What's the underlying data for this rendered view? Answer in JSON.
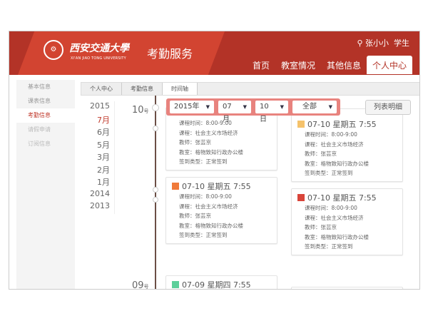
{
  "header": {
    "university_cn": "西安交通大學",
    "university_en": "XI'AN JIAO TONG UNIVERSITY",
    "service": "考勤服务",
    "user_name": "张小小",
    "user_role": "学生",
    "nav": [
      {
        "label": "首页"
      },
      {
        "label": "教室情况"
      },
      {
        "label": "其他信息"
      },
      {
        "label": "个人中心",
        "active": true
      }
    ]
  },
  "sidebar": {
    "items": [
      {
        "label": "基本信息"
      },
      {
        "label": "课表信息"
      },
      {
        "label": "考勤信息",
        "active": true
      },
      {
        "label": "请假申请"
      },
      {
        "label": "订阅信息"
      }
    ]
  },
  "breadcrumb": [
    "个人中心",
    "考勤信息",
    "时间轴"
  ],
  "years": [
    "2015",
    "7月",
    "6月",
    "5月",
    "3月",
    "2月",
    "1月",
    "2014",
    "2013"
  ],
  "days": {
    "d1": "10",
    "d2": "09",
    "suffix": "号"
  },
  "filter": {
    "year": "2015年",
    "month": "07月",
    "day": "10日",
    "type": "全部"
  },
  "list_button": "列表明细",
  "colors": {
    "header": "#b33327",
    "accent": "#c0392b",
    "filter": "#e8837e"
  },
  "cards": [
    {
      "title": "07-10 星期五 7:55",
      "time": "课程时间：8:00-9:00",
      "course": "课程：社会主义市场经济",
      "teacher": "教师：张芸京",
      "room": "教室：格物致知行政办公楼",
      "type": "签到类型：正常签到",
      "icon_color": "#f08a4b"
    },
    {
      "title": "07-10 星期五 7:55",
      "time": "课程时间：8:00-9:00",
      "course": "课程：社会主义市场经济",
      "teacher": "教师：张芸京",
      "room": "教室：格物致知行政办公楼",
      "type": "签到类型：正常签到",
      "icon_color": "#f5c26b"
    },
    {
      "title": "07-10 星期五 7:55",
      "time": "课程时间：8:00-9:00",
      "course": "课程：社会主义市场经济",
      "teacher": "教师：张芸京",
      "room": "教室：格物致知行政办公楼",
      "type": "签到类型：正常签到",
      "icon_color": "#f07a3a"
    },
    {
      "title": "07-10 星期五 7:55",
      "time": "课程时间：8:00-9:00",
      "course": "课程：社会主义市场经济",
      "teacher": "教师：张芸京",
      "room": "教室：格物致知行政办公楼",
      "type": "签到类型：正常签到",
      "icon_color": "#d9453a"
    },
    {
      "title": "07-09 星期四 7:55",
      "icon_color": "#5ccf9a"
    }
  ]
}
